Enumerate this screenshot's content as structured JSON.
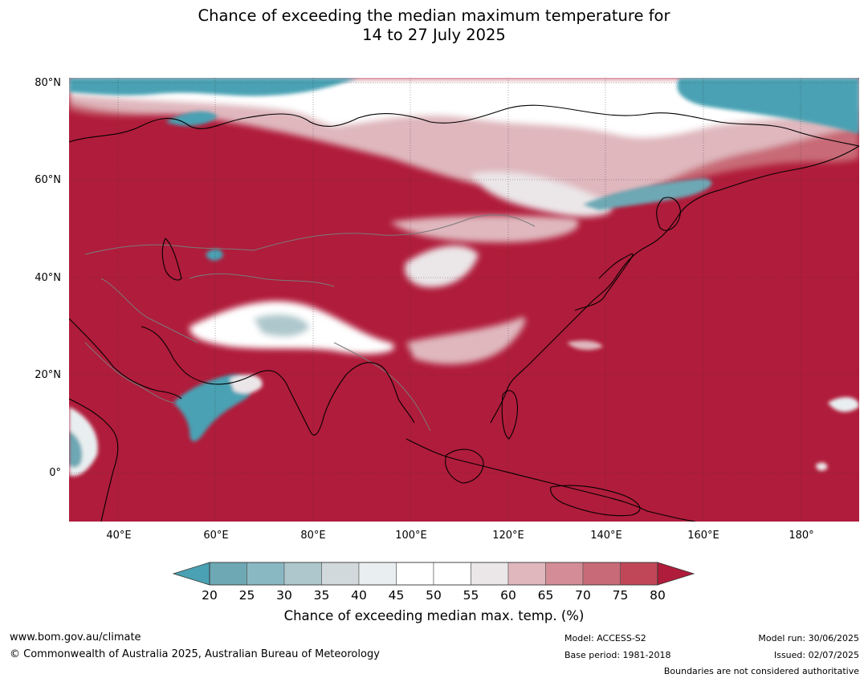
{
  "title": {
    "line1": "Chance of exceeding the median maximum temperature for",
    "line2": "14 to 27 July 2025"
  },
  "axes": {
    "latitude_labels": [
      "80°N",
      "60°N",
      "40°N",
      "20°N",
      "0°"
    ],
    "longitude_labels": [
      "40°E",
      "60°E",
      "80°E",
      "100°E",
      "120°E",
      "140°E",
      "160°E",
      "180°"
    ],
    "lon_range": [
      30,
      192
    ],
    "lat_range": [
      -10,
      81
    ],
    "gridlines": true
  },
  "legend": {
    "title": "Chance of exceeding median max. temp. (%)",
    "ticks": [
      "20",
      "25",
      "30",
      "35",
      "40",
      "45",
      "50",
      "55",
      "60",
      "65",
      "70",
      "75",
      "80"
    ],
    "colors": [
      "#4aa1b3",
      "#6da8b4",
      "#89b8c3",
      "#adc7cc",
      "#d2d9dc",
      "#e9eff1",
      "#ffffff",
      "#ffffff",
      "#ebe6e8",
      "#dfb7bd",
      "#d48d97",
      "#c86a77",
      "#bf4758",
      "#b01c3b"
    ],
    "extend": "both"
  },
  "map": {
    "dominant_color": "#b01c3b",
    "cool_color": "#4aa1b3",
    "neutral_color": "#ffffff"
  },
  "footer": {
    "website": "www.bom.gov.au/climate",
    "copyright": "© Commonwealth of Australia 2025, Australian Bureau of Meteorology",
    "model": "Model: ACCESS-S2",
    "base_period": "Base period: 1981-2018",
    "model_run": "Model run: 30/06/2025",
    "issued": "Issued: 02/07/2025",
    "disclaimer": "Boundaries are not considered authoritative"
  }
}
